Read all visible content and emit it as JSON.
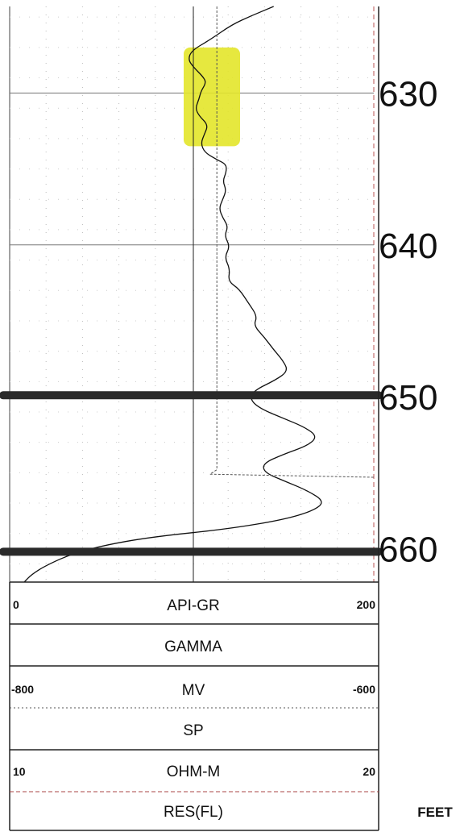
{
  "chart_data": {
    "type": "line",
    "depth_unit": "FEET",
    "depth_ticks": [
      630,
      640,
      650,
      660
    ],
    "depth_range": [
      624.3,
      662.2
    ],
    "highlight": {
      "color": "#e3e62a",
      "depth_range": [
        627,
        633.5
      ]
    },
    "marker_depths": [
      649.9,
      660.2
    ],
    "tracks": [
      {
        "name": "GAMMA",
        "curve": "API-GR",
        "min": "0",
        "max": "200",
        "style": "solid"
      },
      {
        "name": "SP",
        "curve": "MV",
        "min": "-800",
        "max": "-600",
        "style": "dotted"
      },
      {
        "name": "RES(FL)",
        "curve": "OHM-M",
        "min": "10",
        "max": "20",
        "style": "dashed"
      }
    ],
    "series": [
      {
        "values": [
          [
            145,
            624.3
          ],
          [
            133,
            624.9
          ],
          [
            122,
            625.5
          ],
          [
            110,
            626.5
          ],
          [
            100,
            627.2
          ],
          [
            98,
            627.8
          ],
          [
            101,
            628.3
          ],
          [
            106,
            628.9
          ],
          [
            108,
            629.3
          ],
          [
            105,
            629.9
          ],
          [
            104,
            630.4
          ],
          [
            102,
            631.0
          ],
          [
            104,
            631.5
          ],
          [
            109,
            632.1
          ],
          [
            107,
            632.7
          ],
          [
            105,
            633.3
          ],
          [
            107,
            633.9
          ],
          [
            114,
            634.4
          ],
          [
            119,
            634.7
          ],
          [
            119,
            635.2
          ],
          [
            117,
            635.8
          ],
          [
            119,
            636.4
          ],
          [
            117,
            637.0
          ],
          [
            115,
            637.6
          ],
          [
            117,
            638.2
          ],
          [
            120,
            638.8
          ],
          [
            118,
            639.4
          ],
          [
            121,
            640.1
          ],
          [
            118,
            640.8
          ],
          [
            121,
            641.6
          ],
          [
            120,
            642.4
          ],
          [
            126,
            642.9
          ],
          [
            131,
            643.8
          ],
          [
            136,
            644.7
          ],
          [
            134,
            645.3
          ],
          [
            140,
            646.1
          ],
          [
            145,
            646.9
          ],
          [
            150,
            647.6
          ],
          [
            153,
            648.3
          ],
          [
            146,
            648.9
          ],
          [
            134,
            649.6
          ],
          [
            132,
            650.2
          ],
          [
            138,
            650.8
          ],
          [
            150,
            651.4
          ],
          [
            162,
            652.0
          ],
          [
            169,
            652.6
          ],
          [
            164,
            653.2
          ],
          [
            150,
            653.8
          ],
          [
            139,
            654.4
          ],
          [
            140,
            655.0
          ],
          [
            152,
            655.6
          ],
          [
            164,
            656.2
          ],
          [
            173,
            656.9
          ],
          [
            167,
            657.5
          ],
          [
            150,
            658.1
          ],
          [
            120,
            658.7
          ],
          [
            80,
            659.2
          ],
          [
            55,
            659.7
          ],
          [
            35,
            660.3
          ],
          [
            20,
            661.1
          ],
          [
            12,
            661.7
          ],
          [
            8,
            662.2
          ]
        ]
      },
      {
        "values": [
          [
            -686.2,
            624.3
          ],
          [
            -686.2,
            654.8
          ],
          [
            -690,
            655.1
          ],
          [
            -600,
            655.3
          ]
        ]
      }
    ]
  }
}
